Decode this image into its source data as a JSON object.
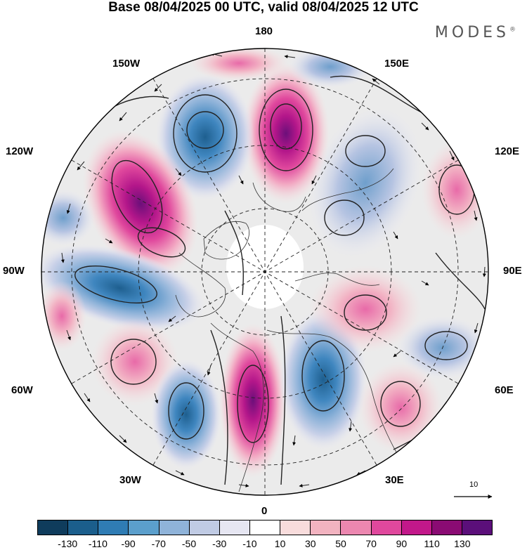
{
  "header": {
    "title": "Base 08/04/2025 00 UTC, valid 08/04/2025 12 UTC",
    "brand": "MODES",
    "brand_mark": "®"
  },
  "map": {
    "projection": "polar stereographic, north pole",
    "longitude_labels": {
      "top": "180",
      "upper_left": "150W",
      "upper_right": "150E",
      "left_upper": "120W",
      "right_upper": "120E",
      "left": "90W",
      "right": "90E",
      "left_lower": "60W",
      "right_lower": "60E",
      "lower_left": "30W",
      "lower_right": "30E",
      "bottom": "0"
    },
    "vector_reference": {
      "label": "10",
      "icon": "arrow-right-icon"
    }
  },
  "colorbar": {
    "ticks": [
      "-130",
      "-110",
      "-90",
      "-70",
      "-50",
      "-30",
      "-10",
      "10",
      "30",
      "50",
      "70",
      "90",
      "110",
      "130"
    ],
    "colors": [
      "#0f3c5c",
      "#1b5e8c",
      "#2f7cb4",
      "#5b9fcc",
      "#8fb3d9",
      "#c0cbe4",
      "#e6e6f2",
      "#ffffff",
      "#f8dcdc",
      "#f2b3c0",
      "#ec87b0",
      "#e0489d",
      "#c2188a",
      "#8a0b73",
      "#5b0f7a"
    ]
  }
}
